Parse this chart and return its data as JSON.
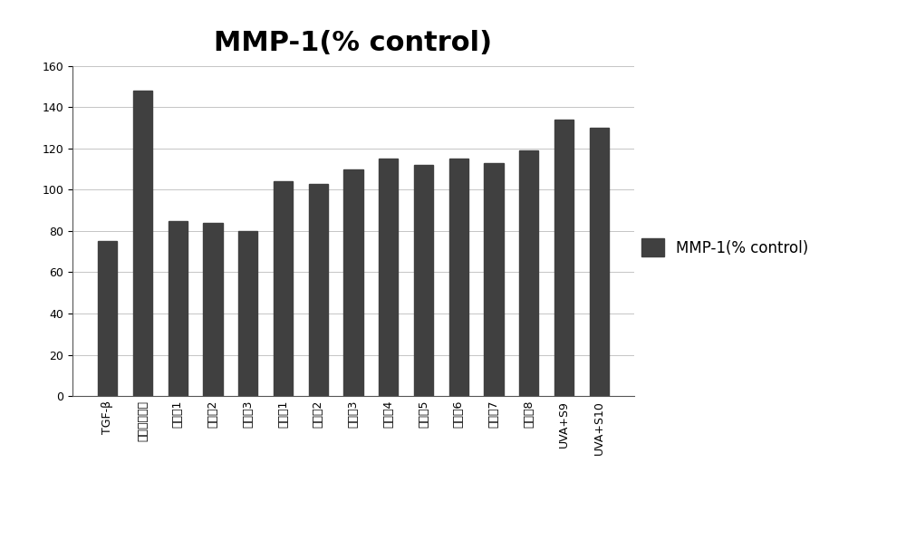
{
  "title": "MMP-1(% control)",
  "categories": [
    "TGF-β",
    "无血清培养液",
    "实施例1",
    "实施例2",
    "实施例3",
    "对比例1",
    "对比例2",
    "对比例3",
    "对比例4",
    "对比例5",
    "对比例6",
    "对比例7",
    "对比例8",
    "UVA+S9",
    "UVA+S10"
  ],
  "values": [
    75,
    148,
    85,
    84,
    80,
    104,
    103,
    110,
    115,
    112,
    115,
    113,
    119,
    134,
    130
  ],
  "bar_color": "#404040",
  "legend_label": "MMP-1(% control)",
  "ylim": [
    0,
    160
  ],
  "yticks": [
    0,
    20,
    40,
    60,
    80,
    100,
    120,
    140,
    160
  ],
  "background_color": "#ffffff",
  "title_fontsize": 22,
  "tick_fontsize": 9,
  "legend_fontsize": 12,
  "bar_width": 0.55
}
